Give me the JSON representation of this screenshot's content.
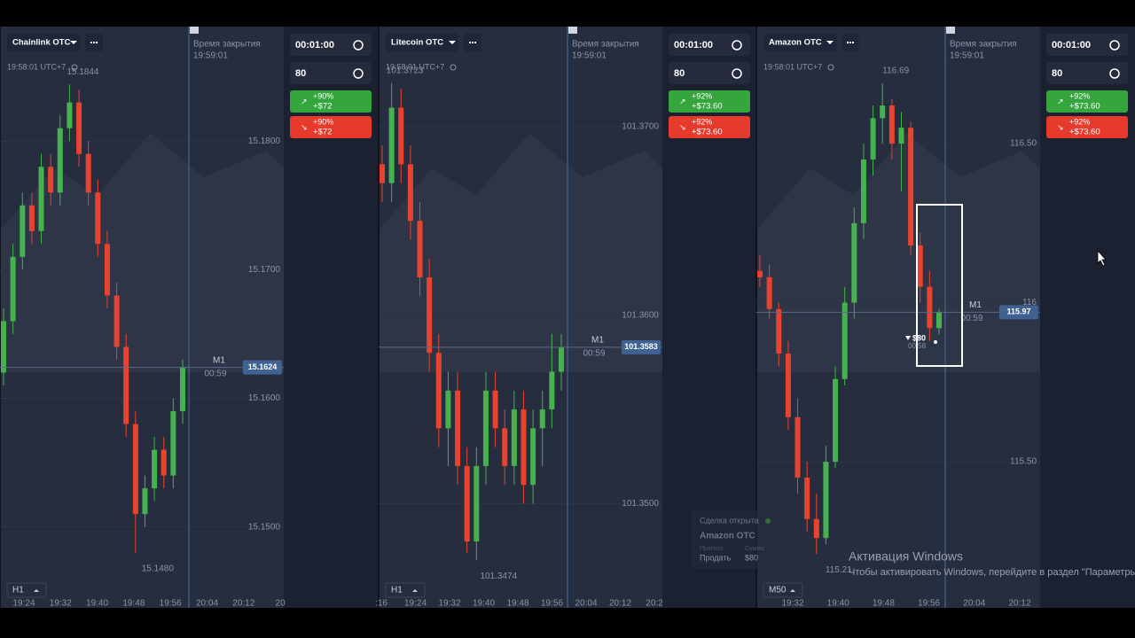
{
  "panels": [
    {
      "asset": "Chainlink OTC",
      "server_time": "19:58:01 UTC+7",
      "close_label": "Время закрытия",
      "close_time": "19:59:01",
      "timer": "00:01:00",
      "amount": 80,
      "up_percent": "+90%",
      "up_payout": "+$72",
      "down_percent": "+90%",
      "down_payout": "+$72",
      "timeframe": "H1",
      "expiry_label": "M1",
      "expiry_countdown": "00:59",
      "chart": {
        "type": "candlestick",
        "ylim": [
          15.1455,
          15.1889
        ],
        "yticks": [
          {
            "value": 15.18,
            "label": "15.1800"
          },
          {
            "value": 15.17,
            "label": "15.1700"
          },
          {
            "value": 15.16,
            "label": "15.1600"
          },
          {
            "value": 15.15,
            "label": "15.1500"
          }
        ],
        "current_price": 15.1624,
        "high": 15.1844,
        "low": {
          "value": 15.148,
          "label": "15.1480"
        },
        "xticks": [
          "19:24",
          "19:32",
          "19:40",
          "19:48",
          "19:56",
          "20:04",
          "20:12",
          "20"
        ],
        "candles": [
          [
            15.162,
            15.167,
            15.161,
            15.166
          ],
          [
            15.166,
            15.172,
            15.165,
            15.171
          ],
          [
            15.171,
            15.176,
            15.17,
            15.175
          ],
          [
            15.175,
            15.176,
            15.172,
            15.173
          ],
          [
            15.173,
            15.179,
            15.172,
            15.178
          ],
          [
            15.178,
            15.179,
            15.175,
            15.176
          ],
          [
            15.176,
            15.182,
            15.175,
            15.181
          ],
          [
            15.181,
            15.1844,
            15.18,
            15.183
          ],
          [
            15.183,
            15.184,
            15.178,
            15.179
          ],
          [
            15.179,
            15.18,
            15.175,
            15.176
          ],
          [
            15.176,
            15.177,
            15.171,
            15.172
          ],
          [
            15.172,
            15.173,
            15.167,
            15.168
          ],
          [
            15.168,
            15.169,
            15.163,
            15.164
          ],
          [
            15.164,
            15.165,
            15.157,
            15.158
          ],
          [
            15.158,
            15.159,
            15.148,
            15.151
          ],
          [
            15.151,
            15.154,
            15.15,
            15.153
          ],
          [
            15.153,
            15.157,
            15.152,
            15.156
          ],
          [
            15.156,
            15.157,
            15.153,
            15.154
          ],
          [
            15.154,
            15.16,
            15.153,
            15.159
          ],
          [
            15.159,
            15.163,
            15.158,
            15.1624
          ]
        ]
      }
    },
    {
      "asset": "Litecoin OTC",
      "server_time": "19:58:01 UTC+7",
      "close_label": "Время закрытия",
      "close_time": "19:59:01",
      "timer": "00:01:00",
      "amount": 80,
      "up_percent": "+92%",
      "up_payout": "+$73.60",
      "down_percent": "+92%",
      "down_payout": "+$73.60",
      "timeframe": "H1",
      "expiry_label": "M1",
      "expiry_countdown": "00:59",
      "chart": {
        "type": "candlestick",
        "ylim": [
          101.3457,
          101.3753
        ],
        "yticks": [
          {
            "value": 101.37,
            "label": "101.3700"
          },
          {
            "value": 101.36,
            "label": "101.3600"
          },
          {
            "value": 101.35,
            "label": "101.3500"
          }
        ],
        "current_price": 101.3583,
        "high": 101.3723,
        "low": 101.3474,
        "xticks": [
          ":16",
          "19:24",
          "19:32",
          "19:40",
          "19:48",
          "19:56",
          "20:04",
          "20:12",
          "20:2"
        ],
        "candles": [
          [
            101.368,
            101.369,
            101.366,
            101.367
          ],
          [
            101.367,
            101.3723,
            101.366,
            101.371
          ],
          [
            101.371,
            101.372,
            101.367,
            101.368
          ],
          [
            101.368,
            101.369,
            101.364,
            101.365
          ],
          [
            101.365,
            101.366,
            101.361,
            101.362
          ],
          [
            101.362,
            101.363,
            101.357,
            101.358
          ],
          [
            101.358,
            101.359,
            101.353,
            101.354
          ],
          [
            101.354,
            101.357,
            101.352,
            101.356
          ],
          [
            101.356,
            101.357,
            101.351,
            101.352
          ],
          [
            101.352,
            101.353,
            101.3474,
            101.348
          ],
          [
            101.348,
            101.353,
            101.347,
            101.352
          ],
          [
            101.352,
            101.357,
            101.351,
            101.356
          ],
          [
            101.356,
            101.357,
            101.353,
            101.354
          ],
          [
            101.354,
            101.355,
            101.351,
            101.352
          ],
          [
            101.352,
            101.356,
            101.351,
            101.355
          ],
          [
            101.355,
            101.356,
            101.35,
            101.351
          ],
          [
            101.351,
            101.355,
            101.35,
            101.354
          ],
          [
            101.354,
            101.356,
            101.352,
            101.355
          ],
          [
            101.355,
            101.359,
            101.354,
            101.357
          ],
          [
            101.357,
            101.359,
            101.356,
            101.3583
          ]
        ]
      }
    },
    {
      "asset": "Amazon OTC",
      "server_time": "19:58:01 UTC+7",
      "close_label": "Время закрытия",
      "close_time": "19:59:01",
      "timer": "00:01:00",
      "amount": 80,
      "up_percent": "+92%",
      "up_payout": "+$73.60",
      "down_percent": "+92%",
      "down_payout": "+$73.60",
      "timeframe": "M50",
      "expiry_label": "M1",
      "expiry_countdown": "00:59",
      "trade_marker": {
        "amount": "$80",
        "countdown": "00:58"
      },
      "trade_notice": {
        "title": "Сделка открыта",
        "asset": "Amazon OTC",
        "forecast_label": "Прогноз",
        "sum_label": "Сумма",
        "direction": "Продать",
        "sum": "$80"
      },
      "chart": {
        "type": "candlestick",
        "ylim": [
          115.113,
          116.868
        ],
        "yticks": [
          {
            "value": 116.5,
            "label": "116.50"
          },
          116,
          {
            "value": 115.5,
            "label": "115.50"
          }
        ],
        "current_price": 115.97,
        "high": 116.69,
        "low": 115.21,
        "xticks": [
          "19:32",
          "19:40",
          "19:48",
          "19:56",
          "20:04",
          "20:12"
        ],
        "candles": [
          [
            116.1,
            116.15,
            116.05,
            116.08
          ],
          [
            116.08,
            116.12,
            115.95,
            115.98
          ],
          [
            115.98,
            116.0,
            115.8,
            115.84
          ],
          [
            115.84,
            115.88,
            115.6,
            115.64
          ],
          [
            115.64,
            115.7,
            115.4,
            115.45
          ],
          [
            115.45,
            115.5,
            115.28,
            115.32
          ],
          [
            115.32,
            115.4,
            115.21,
            115.26
          ],
          [
            115.26,
            115.55,
            115.24,
            115.5
          ],
          [
            115.5,
            115.8,
            115.48,
            115.76
          ],
          [
            115.76,
            116.05,
            115.74,
            116.0
          ],
          [
            116.0,
            116.3,
            115.95,
            116.25
          ],
          [
            116.25,
            116.5,
            116.2,
            116.45
          ],
          [
            116.45,
            116.62,
            116.4,
            116.58
          ],
          [
            116.58,
            116.69,
            116.5,
            116.62
          ],
          [
            116.62,
            116.64,
            116.45,
            116.5
          ],
          [
            116.5,
            116.6,
            116.35,
            116.55
          ],
          [
            116.55,
            116.57,
            116.15,
            116.18
          ],
          [
            116.18,
            116.22,
            116.0,
            116.05
          ],
          [
            116.05,
            116.1,
            115.88,
            115.92
          ],
          [
            115.92,
            115.98,
            115.9,
            115.97
          ]
        ]
      }
    }
  ],
  "watermark": {
    "title": "Активация Windows",
    "text": "Чтобы активировать Windows, перейдите в раздел \"Параметры\""
  }
}
